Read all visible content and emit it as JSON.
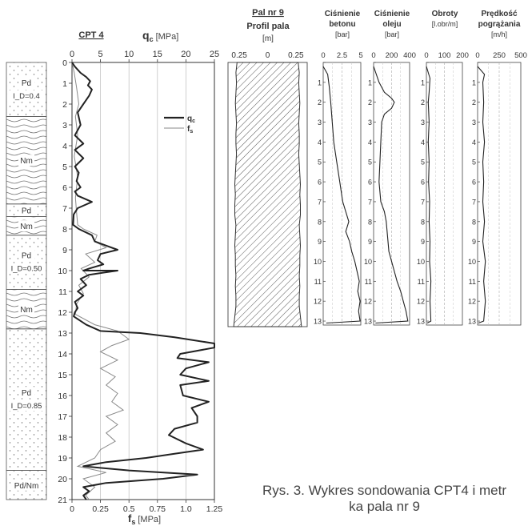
{
  "chart_data": [
    {
      "type": "table",
      "name": "soil-profile",
      "layers": [
        {
          "label": "Pd",
          "sublabel": "I_D=0.4",
          "top": 0,
          "bottom": 2.6,
          "pattern": "dots"
        },
        {
          "label": "Nm",
          "sublabel": "",
          "top": 2.6,
          "bottom": 6.8,
          "pattern": "waves"
        },
        {
          "label": "Pd",
          "sublabel": "",
          "top": 6.8,
          "bottom": 7.4,
          "pattern": "dots"
        },
        {
          "label": "Nm",
          "sublabel": "",
          "top": 7.4,
          "bottom": 8.3,
          "pattern": "waves"
        },
        {
          "label": "Pd",
          "sublabel": "I_D=0.50",
          "top": 8.3,
          "bottom": 10.9,
          "pattern": "dots"
        },
        {
          "label": "Nm",
          "sublabel": "",
          "top": 10.9,
          "bottom": 12.8,
          "pattern": "waves"
        },
        {
          "label": "Pd",
          "sublabel": "I_D=0.85",
          "top": 12.8,
          "bottom": 19.6,
          "pattern": "dots"
        },
        {
          "label": "Pd/Nm",
          "sublabel": "",
          "top": 19.6,
          "bottom": 21,
          "pattern": "dots"
        }
      ]
    },
    {
      "type": "line",
      "title": "CPT 4",
      "top_axis": {
        "symbol": "q",
        "sub": "c",
        "unit": "[MPa]",
        "min": 0,
        "max": 25,
        "ticks": [
          0,
          5,
          10,
          15,
          20,
          25
        ]
      },
      "bottom_axis": {
        "symbol": "f",
        "sub": "s",
        "unit": "[MPa]",
        "min": 0,
        "max": 1.25,
        "ticks": [
          "0",
          "0.25",
          "0.5",
          "0.75",
          "1.0",
          "1.25"
        ]
      },
      "y_axis": {
        "min": 0,
        "max": 21,
        "inverted": true,
        "ticks": [
          0,
          1,
          2,
          3,
          4,
          5,
          6,
          7,
          8,
          9,
          10,
          11,
          12,
          13,
          14,
          15,
          16,
          17,
          18,
          19,
          20,
          21
        ]
      },
      "legend": [
        {
          "symbol": "q",
          "sub": "c",
          "color": "#222222",
          "weight": "thick"
        },
        {
          "symbol": "f",
          "sub": "s",
          "color": "#8a8a8a",
          "weight": "thin"
        }
      ],
      "series": [
        {
          "name": "qc",
          "axis": "top",
          "color": "#222222",
          "points": [
            [
              0,
              0
            ],
            [
              0.5,
              0.2
            ],
            [
              1.5,
              0.5
            ],
            [
              2.5,
              0.7
            ],
            [
              3.2,
              0.9
            ],
            [
              2.8,
              1.1
            ],
            [
              3.5,
              1.3
            ],
            [
              3.0,
              1.6
            ],
            [
              2.0,
              2.0
            ],
            [
              1.0,
              2.4
            ],
            [
              1.5,
              3.0
            ],
            [
              0.5,
              3.5
            ],
            [
              2.0,
              3.9
            ],
            [
              0.5,
              4.2
            ],
            [
              2.0,
              4.6
            ],
            [
              0.5,
              5.0
            ],
            [
              1.2,
              5.3
            ],
            [
              0.8,
              5.7
            ],
            [
              1.5,
              6.0
            ],
            [
              0.5,
              6.2
            ],
            [
              1.0,
              6.4
            ],
            [
              3.5,
              6.7
            ],
            [
              1.0,
              7.0
            ],
            [
              0.3,
              7.3
            ],
            [
              0.2,
              7.8
            ],
            [
              1.2,
              8.0
            ],
            [
              3.5,
              8.3
            ],
            [
              4.0,
              8.6
            ],
            [
              6.0,
              8.8
            ],
            [
              8.0,
              9.0
            ],
            [
              5.0,
              9.2
            ],
            [
              4.5,
              9.5
            ],
            [
              5.5,
              9.7
            ],
            [
              3.0,
              9.9
            ],
            [
              2.0,
              10.0
            ],
            [
              8.0,
              10.0
            ],
            [
              3.0,
              10.2
            ],
            [
              1.5,
              10.4
            ],
            [
              2.5,
              10.7
            ],
            [
              1.0,
              11.0
            ],
            [
              2.0,
              11.2
            ],
            [
              0.5,
              11.5
            ],
            [
              1.0,
              11.8
            ],
            [
              0.5,
              12.0
            ],
            [
              0.3,
              12.2
            ],
            [
              2.5,
              12.6
            ],
            [
              5.0,
              12.9
            ],
            [
              12.0,
              13.0
            ],
            [
              18.0,
              13.2
            ],
            [
              25.0,
              13.5
            ],
            [
              25.0,
              13.7
            ],
            [
              19.0,
              14.0
            ],
            [
              18.5,
              14.2
            ],
            [
              24.0,
              14.4
            ],
            [
              20.0,
              14.7
            ],
            [
              19.0,
              15.0
            ],
            [
              24.0,
              15.3
            ],
            [
              19.0,
              15.5
            ],
            [
              19.5,
              16.0
            ],
            [
              24.0,
              16.3
            ],
            [
              21.0,
              16.6
            ],
            [
              22.0,
              17.0
            ],
            [
              22.0,
              17.3
            ],
            [
              18.0,
              17.6
            ],
            [
              17.0,
              17.9
            ],
            [
              20.0,
              18.3
            ],
            [
              23.0,
              18.6
            ],
            [
              18.0,
              18.8
            ],
            [
              13.0,
              19.0
            ],
            [
              6.0,
              19.2
            ],
            [
              2.0,
              19.4
            ],
            [
              10.0,
              19.6
            ],
            [
              22.0,
              19.8
            ],
            [
              16.0,
              20.0
            ],
            [
              6.0,
              20.2
            ],
            [
              2.0,
              20.4
            ],
            [
              3.0,
              20.6
            ],
            [
              2.0,
              20.8
            ],
            [
              2.5,
              21.0
            ]
          ]
        },
        {
          "name": "fs",
          "axis": "bottom",
          "color": "#8a8a8a",
          "points": [
            [
              0,
              0
            ],
            [
              0.02,
              0.5
            ],
            [
              0.04,
              1.2
            ],
            [
              0.06,
              2.0
            ],
            [
              0.03,
              2.6
            ],
            [
              0.05,
              3.5
            ],
            [
              0.02,
              4.5
            ],
            [
              0.05,
              5.5
            ],
            [
              0.03,
              6.5
            ],
            [
              0.04,
              7.2
            ],
            [
              0.05,
              7.8
            ],
            [
              0.1,
              8.0
            ],
            [
              0.22,
              8.3
            ],
            [
              0.2,
              8.6
            ],
            [
              0.3,
              8.9
            ],
            [
              0.12,
              9.2
            ],
            [
              0.2,
              9.6
            ],
            [
              0.08,
              9.9
            ],
            [
              0.15,
              10.3
            ],
            [
              0.06,
              10.7
            ],
            [
              0.1,
              11.1
            ],
            [
              0.04,
              11.6
            ],
            [
              0.03,
              12.1
            ],
            [
              0.2,
              12.6
            ],
            [
              0.4,
              12.9
            ],
            [
              0.5,
              13.3
            ],
            [
              0.35,
              13.6
            ],
            [
              0.25,
              13.9
            ],
            [
              0.4,
              14.3
            ],
            [
              0.25,
              14.7
            ],
            [
              0.38,
              15.1
            ],
            [
              0.3,
              15.5
            ],
            [
              0.4,
              15.9
            ],
            [
              0.35,
              16.3
            ],
            [
              0.45,
              16.7
            ],
            [
              0.3,
              17.0
            ],
            [
              0.4,
              17.4
            ],
            [
              0.3,
              17.8
            ],
            [
              0.38,
              18.2
            ],
            [
              0.25,
              18.6
            ],
            [
              0.2,
              19.0
            ],
            [
              0.05,
              19.4
            ],
            [
              0.3,
              19.7
            ],
            [
              0.1,
              20.0
            ],
            [
              0.2,
              20.4
            ],
            [
              0.12,
              20.8
            ],
            [
              0.15,
              21.0
            ]
          ]
        }
      ]
    },
    {
      "type": "area",
      "title": "Pal nr 9",
      "subtitle": "Profil pala",
      "unit": "[m]",
      "x_ticks": [
        "0.25",
        "0",
        "0.25"
      ],
      "xlim": [
        -0.35,
        0.35
      ],
      "ylim": [
        0,
        13
      ],
      "profile": [
        [
          0,
          0.27
        ],
        [
          0.5,
          0.28
        ],
        [
          1.0,
          0.275
        ],
        [
          1.5,
          0.28
        ],
        [
          2.0,
          0.285
        ],
        [
          2.5,
          0.28
        ],
        [
          3.0,
          0.275
        ],
        [
          3.5,
          0.28
        ],
        [
          4.0,
          0.28
        ],
        [
          4.5,
          0.275
        ],
        [
          5.0,
          0.28
        ],
        [
          5.5,
          0.285
        ],
        [
          6.0,
          0.29
        ],
        [
          6.5,
          0.285
        ],
        [
          7.0,
          0.29
        ],
        [
          7.5,
          0.29
        ],
        [
          8.0,
          0.28
        ],
        [
          8.5,
          0.285
        ],
        [
          9.0,
          0.29
        ],
        [
          9.5,
          0.285
        ],
        [
          10.0,
          0.285
        ],
        [
          10.5,
          0.28
        ],
        [
          11.0,
          0.285
        ],
        [
          11.5,
          0.28
        ],
        [
          12.0,
          0.28
        ],
        [
          12.5,
          0.29
        ],
        [
          13.0,
          0.3
        ]
      ]
    },
    {
      "type": "line",
      "title": "Ciśnienie betonu",
      "unit": "[bar]",
      "x_ticks": [
        "0",
        "2.5",
        "5"
      ],
      "xlim": [
        0,
        5
      ],
      "ylim": [
        0,
        13.2
      ],
      "y_ticks": [
        0,
        1,
        2,
        3,
        4,
        5,
        6,
        7,
        8,
        9,
        10,
        11,
        12,
        13
      ],
      "points": [
        [
          0,
          0.2
        ],
        [
          0.6,
          0.6
        ],
        [
          0.8,
          1.2
        ],
        [
          1.0,
          2.0
        ],
        [
          1.2,
          3.0
        ],
        [
          1.4,
          4.0
        ],
        [
          1.8,
          5.0
        ],
        [
          2.2,
          6.0
        ],
        [
          2.6,
          7.0
        ],
        [
          3.0,
          7.5
        ],
        [
          3.4,
          8.0
        ],
        [
          3.0,
          8.5
        ],
        [
          3.5,
          9.0
        ],
        [
          3.8,
          9.5
        ],
        [
          4.2,
          10.0
        ],
        [
          4.5,
          10.5
        ],
        [
          4.8,
          11.0
        ],
        [
          4.6,
          11.5
        ],
        [
          4.9,
          12.0
        ],
        [
          4.7,
          12.5
        ],
        [
          4.9,
          13.0
        ],
        [
          0.4,
          13.1
        ]
      ]
    },
    {
      "type": "line",
      "title": "Ciśnienie oleju",
      "unit": "[bar]",
      "x_ticks": [
        "0",
        "200",
        "400"
      ],
      "xlim": [
        0,
        400
      ],
      "ylim": [
        0,
        13.2
      ],
      "y_ticks": [
        0,
        1,
        2,
        3,
        4,
        5,
        6,
        7,
        8,
        9,
        10,
        11,
        12,
        13
      ],
      "points": [
        [
          0,
          0.2
        ],
        [
          60,
          1.0
        ],
        [
          120,
          1.5
        ],
        [
          200,
          1.8
        ],
        [
          230,
          2.0
        ],
        [
          200,
          2.3
        ],
        [
          120,
          2.6
        ],
        [
          90,
          3.0
        ],
        [
          80,
          4.0
        ],
        [
          70,
          5.0
        ],
        [
          60,
          6.0
        ],
        [
          80,
          7.0
        ],
        [
          120,
          7.5
        ],
        [
          140,
          8.0
        ],
        [
          150,
          8.5
        ],
        [
          160,
          9.0
        ],
        [
          170,
          9.5
        ],
        [
          200,
          10.0
        ],
        [
          230,
          10.5
        ],
        [
          260,
          11.0
        ],
        [
          300,
          11.5
        ],
        [
          330,
          12.0
        ],
        [
          360,
          12.5
        ],
        [
          380,
          13.0
        ],
        [
          20,
          13.1
        ]
      ]
    },
    {
      "type": "line",
      "title": "Obroty",
      "unit": "[l.obr/m]",
      "x_ticks": [
        "0",
        "100",
        "200"
      ],
      "xlim": [
        0,
        200
      ],
      "ylim": [
        0,
        13.2
      ],
      "y_ticks": [
        0,
        1,
        2,
        3,
        4,
        5,
        6,
        7,
        8,
        9,
        10,
        11,
        12,
        13
      ],
      "points": [
        [
          0,
          0.2
        ],
        [
          20,
          0.8
        ],
        [
          15,
          1.5
        ],
        [
          10,
          2.0
        ],
        [
          15,
          3.0
        ],
        [
          10,
          4.0
        ],
        [
          15,
          5.0
        ],
        [
          12,
          6.0
        ],
        [
          18,
          7.0
        ],
        [
          15,
          8.0
        ],
        [
          20,
          9.0
        ],
        [
          18,
          10.0
        ],
        [
          25,
          11.0
        ],
        [
          20,
          12.0
        ],
        [
          25,
          13.0
        ],
        [
          5,
          13.1
        ]
      ]
    },
    {
      "type": "line",
      "title": "Prędkość pogrążania",
      "unit": "[m/h]",
      "x_ticks": [
        "0",
        "250",
        "500"
      ],
      "xlim": [
        0,
        500
      ],
      "ylim": [
        0,
        13.2
      ],
      "y_ticks": [
        0,
        1,
        2,
        3,
        4,
        5,
        6,
        7,
        8,
        9,
        10,
        11,
        12,
        13
      ],
      "points": [
        [
          0,
          0.2
        ],
        [
          80,
          0.6
        ],
        [
          60,
          1.0
        ],
        [
          70,
          2.0
        ],
        [
          60,
          3.0
        ],
        [
          80,
          4.0
        ],
        [
          60,
          5.0
        ],
        [
          70,
          6.0
        ],
        [
          60,
          7.0
        ],
        [
          80,
          8.0
        ],
        [
          60,
          9.0
        ],
        [
          90,
          10.0
        ],
        [
          70,
          11.0
        ],
        [
          90,
          12.0
        ],
        [
          70,
          13.0
        ],
        [
          10,
          13.1
        ]
      ]
    }
  ],
  "caption": {
    "line1": "Rys. 3. Wykres sondowania CPT4 i metr",
    "line2": "ka pala nr 9"
  }
}
